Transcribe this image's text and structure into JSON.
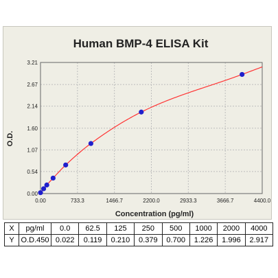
{
  "chart_data": {
    "type": "scatter",
    "title": "Human BMP-4 ELISA Kit",
    "xlabel": "Concentration (pg/ml)",
    "ylabel": "O.D.",
    "xlim": [
      0,
      4400
    ],
    "ylim": [
      0,
      3.21
    ],
    "x_ticks": [
      "0.00",
      "733.3",
      "1466.7",
      "2200.0",
      "2933.3",
      "3666.7",
      "4400.0"
    ],
    "x_tick_values": [
      0,
      733.3,
      1466.7,
      2200,
      2933.3,
      3666.7,
      4400
    ],
    "y_ticks": [
      "0.00",
      "0.54",
      "1.07",
      "1.60",
      "2.14",
      "2.67",
      "3.21"
    ],
    "y_tick_values": [
      0,
      0.54,
      1.07,
      1.6,
      2.14,
      2.67,
      3.21
    ],
    "grid": true,
    "point_color": "#2020cc",
    "curve_color": "#ff3333",
    "x": [
      0,
      62.5,
      125,
      250,
      500,
      1000,
      2000,
      4000
    ],
    "y": [
      0.022,
      0.119,
      0.21,
      0.379,
      0.7,
      1.226,
      1.996,
      2.917
    ]
  },
  "table": {
    "row_x": {
      "label": "X",
      "unit": "pg/ml",
      "values": [
        "0.0",
        "62.5",
        "125",
        "250",
        "500",
        "1000",
        "2000",
        "4000"
      ]
    },
    "row_y": {
      "label": "Y",
      "unit": "O.D.450",
      "values": [
        "0.022",
        "0.119",
        "0.210",
        "0.379",
        "0.700",
        "1.226",
        "1.996",
        "2.917"
      ]
    }
  }
}
